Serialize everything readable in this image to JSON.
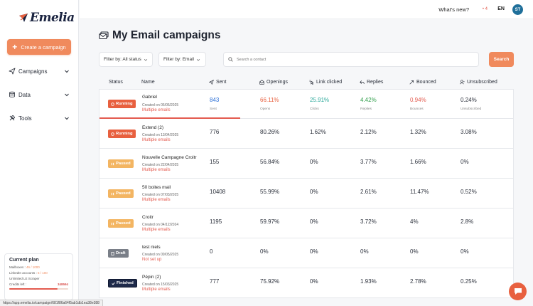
{
  "app": {
    "logo_text": "Emelia"
  },
  "sidebar": {
    "create_label": "Create a campaign",
    "items": [
      {
        "label": "Campaigns",
        "icon": "send-icon"
      },
      {
        "label": "Data",
        "icon": "database-icon"
      },
      {
        "label": "Tools",
        "icon": "tools-icon"
      }
    ],
    "plan": {
      "title": "Current plan",
      "mailboxes_label": "Mailboxes :",
      "mailboxes_value": "46 / 1000",
      "linkedin_label": "LinkedIn accounts :",
      "linkedin_value": "5 / 100",
      "scraper": "Unlimited LE Scraper",
      "credits_label": "Credits left :",
      "credits_value": "348594",
      "credits_fraction": 0.82
    }
  },
  "topbar": {
    "whats_new": "What's new?",
    "indicator": "• 4",
    "lang": "EN",
    "avatar": "ST"
  },
  "main": {
    "title": "My Email campaigns",
    "filter_status": "Filter by: All status",
    "filter_type": "Filter by: Email",
    "search_placeholder": "Search a contact",
    "search_button": "Search",
    "columns": {
      "status": "Status",
      "name": "Name",
      "sent": "Sent",
      "openings": "Openings",
      "link_clicked": "Link clicked",
      "replies": "Replies",
      "bounced": "Bounced",
      "unsubscribed": "Unsubscribed"
    },
    "first_row_sublabels": {
      "sent": "Sent",
      "opens": "Opens",
      "clicks": "Clicks",
      "replies": "Replies",
      "bounces": "Bounces",
      "unsubscribed": "Unsubscribed"
    }
  },
  "campaigns": [
    {
      "status": "Running",
      "status_kind": "running",
      "name": "Gabriel",
      "created": "Created on 05/05/2025",
      "type": "Multiple emails",
      "sent": "843",
      "openings": "66.11%",
      "clicks": "25.91%",
      "replies": "4.42%",
      "bounced": "0.94%",
      "unsubscribed": "0.24%"
    },
    {
      "status": "Running",
      "status_kind": "running",
      "name": "Extend (2)",
      "created": "Created on 13/04/2025",
      "type": "Multiple emails",
      "sent": "776",
      "openings": "80.26%",
      "clicks": "1.62%",
      "replies": "2.12%",
      "bounced": "1.32%",
      "unsubscribed": "3.08%"
    },
    {
      "status": "Paused",
      "status_kind": "paused",
      "name": "Nouvelle Campagne Croitr",
      "created": "Created on 22/04/2025",
      "type": "Multiple emails",
      "sent": "155",
      "openings": "56.84%",
      "clicks": "0%",
      "replies": "3.77%",
      "bounced": "1.66%",
      "unsubscribed": "0%"
    },
    {
      "status": "Paused",
      "status_kind": "paused",
      "name": "50 boites mail",
      "created": "Created on 07/03/2025",
      "type": "Multiple emails",
      "sent": "10408",
      "openings": "55.99%",
      "clicks": "0%",
      "replies": "2.61%",
      "bounced": "11.47%",
      "unsubscribed": "0.52%"
    },
    {
      "status": "Paused",
      "status_kind": "paused",
      "name": "Croitr",
      "created": "Created on 04/12/2024",
      "type": "Multiple emails",
      "sent": "1195",
      "openings": "59.97%",
      "clicks": "0%",
      "replies": "3.72%",
      "bounced": "4%",
      "unsubscribed": "2.8%"
    },
    {
      "status": "Draft",
      "status_kind": "draft",
      "name": "test niels",
      "created": "Created on 09/05/2025",
      "type": "Not set up",
      "sent": "0",
      "openings": "0%",
      "clicks": "0%",
      "replies": "0%",
      "bounced": "0%",
      "unsubscribed": "0%"
    },
    {
      "status": "Finished",
      "status_kind": "finished",
      "name": "Pépin (2)",
      "created": "Created on 15/03/2025",
      "type": "Multiple emails",
      "sent": "777",
      "openings": "75.92%",
      "clicks": "0%",
      "replies": "1.93%",
      "bounced": "2.78%",
      "unsubscribed": "0.25%"
    }
  ],
  "status_url": "https://app.emelia.io/campaign/681f86a64f5ab1db1ea38e388",
  "colors": {
    "accent": "#f08a5d",
    "running": "#e8603f",
    "paused": "#f3b562",
    "draft": "#7a7f88",
    "finished": "#1e2a4a"
  }
}
